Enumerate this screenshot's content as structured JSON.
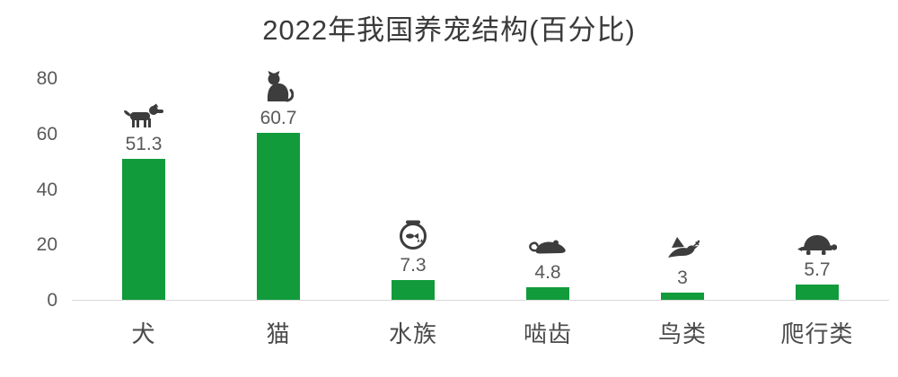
{
  "title": "2022年我国养宠结构(百分比)",
  "chart_data": {
    "type": "bar",
    "title": "2022年我国养宠结构(百分比)",
    "categories": [
      "犬",
      "猫",
      "水族",
      "啮齿",
      "鸟类",
      "爬行类"
    ],
    "values": [
      51.3,
      60.7,
      7.3,
      4.8,
      3,
      5.7
    ],
    "value_labels": [
      "51.3",
      "60.7",
      "7.3",
      "4.8",
      "3",
      "5.7"
    ],
    "icons": [
      "dog-icon",
      "cat-icon",
      "fishbowl-icon",
      "rodent-icon",
      "bird-icon",
      "turtle-icon"
    ],
    "xlabel": "",
    "ylabel": "",
    "ylim": [
      0,
      80
    ],
    "yticks": [
      "0",
      "20",
      "40",
      "60",
      "80"
    ],
    "grid": false,
    "legend": "none",
    "bar_color": "#119b3b",
    "icon_color": "#3d3d3d",
    "axis_line_color": "#d9d9d9",
    "title_color": "#3a3a3a",
    "label_color": "#595959"
  }
}
